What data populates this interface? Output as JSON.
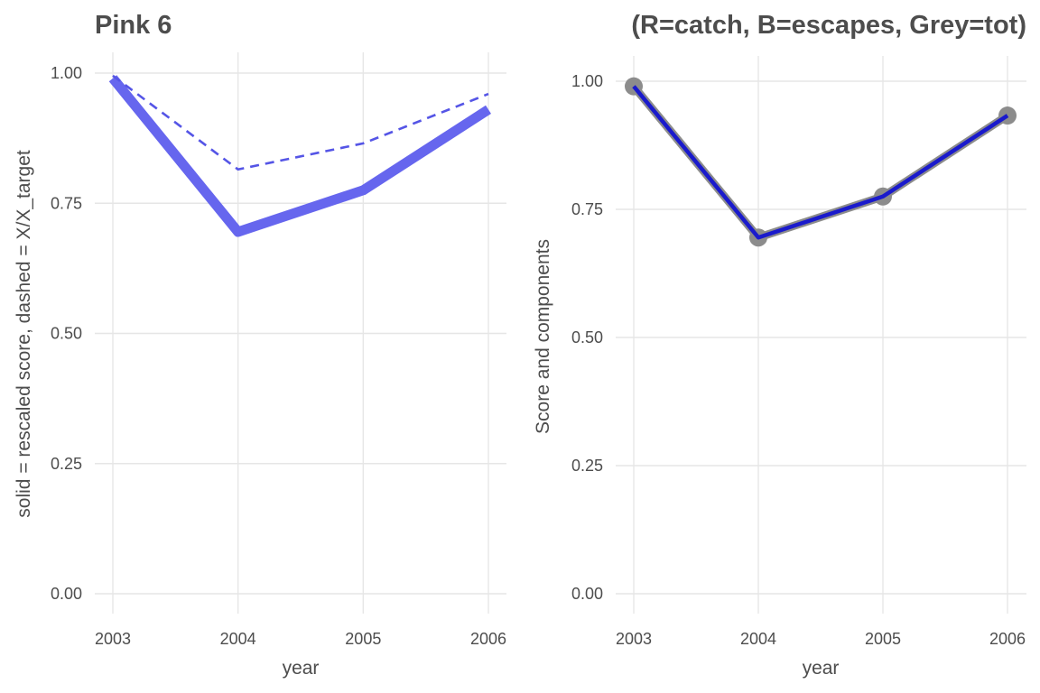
{
  "chart_data": [
    {
      "type": "line",
      "title": "Pink 6",
      "xlabel": "year",
      "ylabel": "solid = rescaled score, dashed = X/X_target",
      "x": [
        2003,
        2004,
        2005,
        2006
      ],
      "x_ticks": [
        "2003",
        "2004",
        "2005",
        "2006"
      ],
      "y_ticks": [
        "0.00",
        "0.25",
        "0.50",
        "0.75",
        "1.00"
      ],
      "ylim": [
        0,
        1
      ],
      "grid": true,
      "series": [
        {
          "style": "solid-thick",
          "color": "#6666ee",
          "values": [
            0.99,
            0.695,
            0.775,
            0.93
          ]
        },
        {
          "style": "dashed",
          "color": "#5555e6",
          "values": [
            0.995,
            0.815,
            0.865,
            0.96
          ]
        }
      ]
    },
    {
      "type": "line",
      "title": "(R=catch, B=escapes, Grey=tot)",
      "xlabel": "year",
      "ylabel": "Score and components",
      "x": [
        2003,
        2004,
        2005,
        2006
      ],
      "x_ticks": [
        "2003",
        "2004",
        "2005",
        "2006"
      ],
      "y_ticks": [
        "0.00",
        "0.25",
        "0.50",
        "0.75",
        "1.00"
      ],
      "ylim": [
        0,
        1
      ],
      "grid": true,
      "series": [
        {
          "style": "grey-line-points",
          "color": "#8c8c8c",
          "values": [
            0.99,
            0.695,
            0.775,
            0.933
          ]
        },
        {
          "style": "blue-line",
          "color": "#1a1acc",
          "values": [
            0.99,
            0.695,
            0.775,
            0.933
          ]
        }
      ]
    }
  ]
}
